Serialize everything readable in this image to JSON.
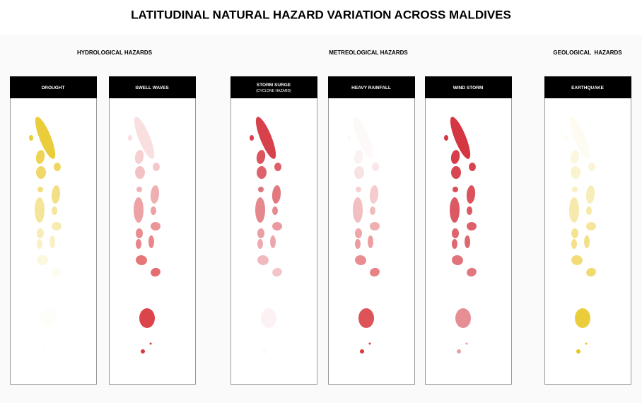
{
  "title": "LATITUDINAL NATURAL HAZARD VARIATION ACROSS MALDIVES",
  "groups": [
    {
      "label": "HYDROLOGICAL HAZARDS"
    },
    {
      "label": "METREOLOGICAL HAZARDS"
    },
    {
      "label": "GEOLOGICAL  HAZARDS"
    }
  ],
  "panels": [
    {
      "label": "DROUGHT"
    },
    {
      "label": "SWELL WAVES"
    },
    {
      "label": "STORM SURGE",
      "sublabel": "(CYCLONE HAZARD)"
    },
    {
      "label": "HEAVY RAINFALL"
    },
    {
      "label": "WIND STORM"
    },
    {
      "label": "EARTHQUAKE"
    }
  ]
}
